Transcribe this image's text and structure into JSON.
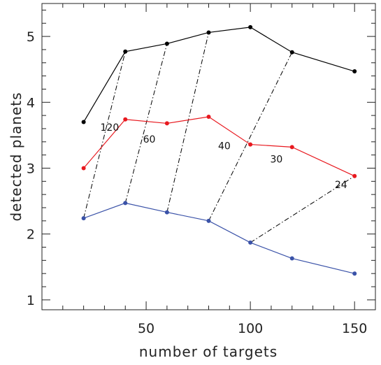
{
  "chart_data": {
    "type": "line",
    "xlabel": "number of targets",
    "ylabel": "detected planets",
    "xlim": [
      0,
      160
    ],
    "ylim": [
      0.85,
      5.5
    ],
    "xticks": [
      50,
      100,
      150
    ],
    "yticks": [
      1,
      2,
      3,
      4,
      5
    ],
    "x_minor_step": 10,
    "y_minor_step": 0.2,
    "grid": false,
    "series": [
      {
        "color": "#000000",
        "style": "solid",
        "x": [
          20,
          40,
          60,
          80,
          100,
          120,
          150
        ],
        "y": [
          3.7,
          4.77,
          4.89,
          5.06,
          5.14,
          4.76,
          4.47
        ]
      },
      {
        "color": "#e8191f",
        "style": "solid",
        "x": [
          20,
          40,
          60,
          80,
          100,
          120,
          150
        ],
        "y": [
          3.0,
          3.74,
          3.68,
          3.78,
          3.36,
          3.32,
          2.88
        ]
      },
      {
        "color": "#3a52a8",
        "style": "solid",
        "x": [
          20,
          40,
          60,
          80,
          100,
          120,
          150
        ],
        "y": [
          2.24,
          2.47,
          2.33,
          2.2,
          1.87,
          1.63,
          1.4
        ]
      }
    ],
    "connectors": [
      {
        "label": "120",
        "x": [
          20,
          40
        ],
        "y": [
          2.24,
          4.77
        ]
      },
      {
        "label": "60",
        "x": [
          40,
          60
        ],
        "y": [
          2.47,
          4.89
        ]
      },
      {
        "label": "40",
        "x": [
          60,
          80
        ],
        "y": [
          2.33,
          5.06
        ]
      },
      {
        "label": "30",
        "x": [
          80,
          120
        ],
        "y": [
          2.2,
          4.76
        ]
      },
      {
        "label": "24",
        "x": [
          100,
          150
        ],
        "y": [
          1.87,
          2.88
        ]
      }
    ],
    "annotations": [
      {
        "text": "120",
        "x": 32.5,
        "y": 3.62
      },
      {
        "text": "60",
        "x": 51.5,
        "y": 3.44
      },
      {
        "text": "40",
        "x": 87.5,
        "y": 3.34
      },
      {
        "text": "30",
        "x": 112.5,
        "y": 3.14
      },
      {
        "text": "24",
        "x": 143.5,
        "y": 2.75
      }
    ]
  }
}
